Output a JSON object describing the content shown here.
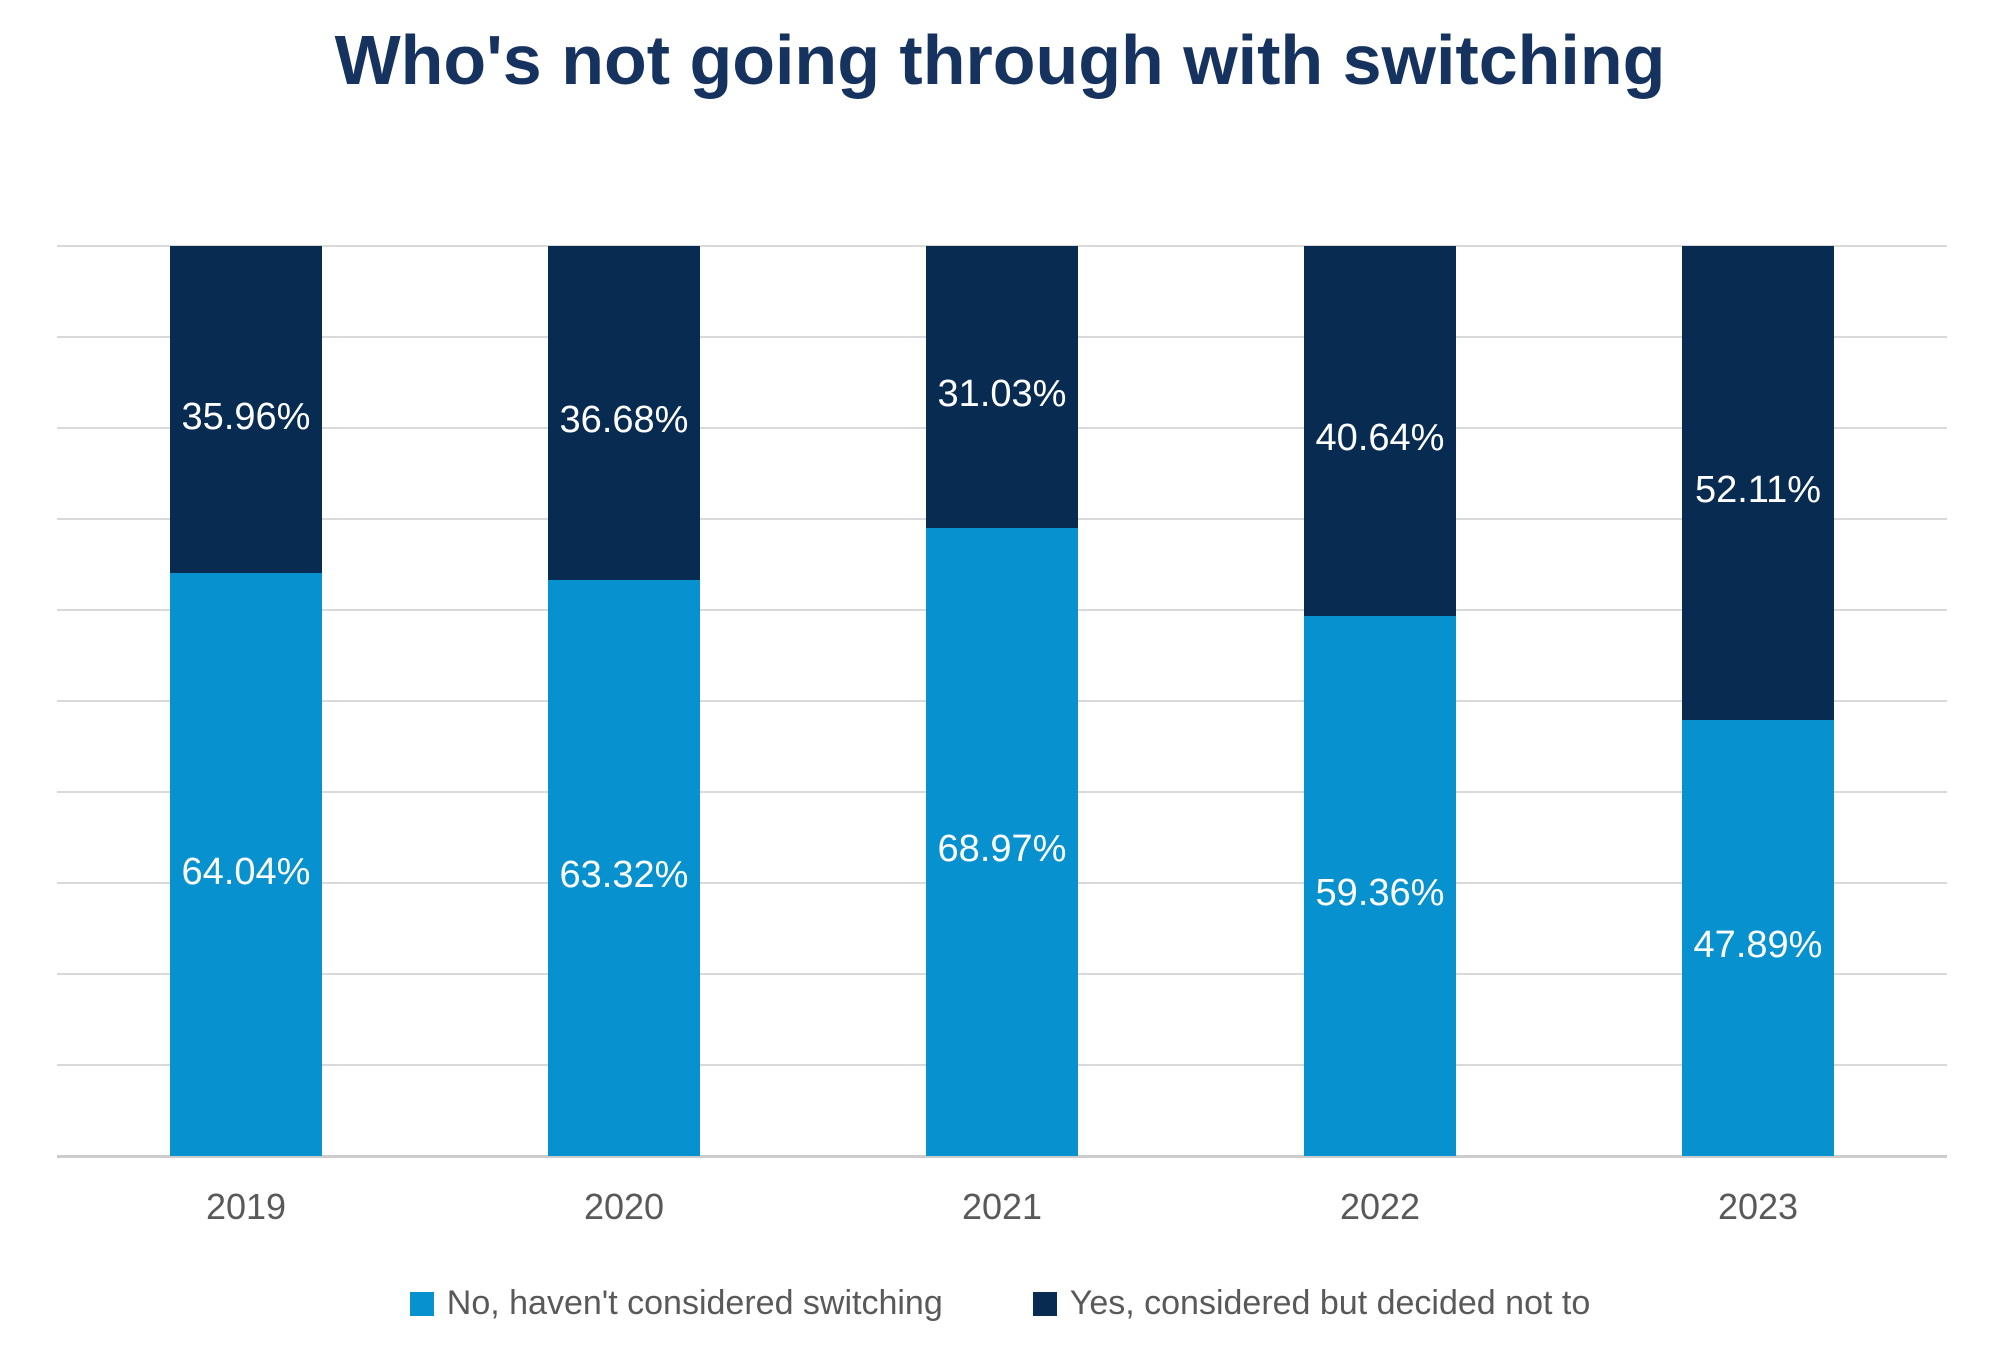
{
  "title": {
    "text": "Who's not going through with switching",
    "color": "#16325f"
  },
  "chart_data": {
    "type": "bar",
    "stacked": true,
    "title": "Who's not going through with switching",
    "categories": [
      "2019",
      "2020",
      "2021",
      "2022",
      "2023"
    ],
    "series": [
      {
        "name": "No, haven't considered switching",
        "color": "#0791ce",
        "position_in_stack": "bottom",
        "values": [
          64.04,
          63.32,
          68.97,
          59.36,
          47.89
        ],
        "labels": [
          "64.04%",
          "63.32%",
          "68.97%",
          "59.36%",
          "47.89%"
        ]
      },
      {
        "name": "Yes, considered but decided not to",
        "color": "#082b52",
        "position_in_stack": "top",
        "values": [
          35.96,
          36.68,
          31.03,
          40.64,
          52.11
        ],
        "labels": [
          "35.96%",
          "36.68%",
          "31.03%",
          "40.64%",
          "52.11%"
        ]
      }
    ],
    "xlabel": "",
    "ylabel": "",
    "ylim": [
      0,
      100
    ],
    "grid": true,
    "gridline_interval": 10,
    "gridline_color": "#d9d9d9",
    "legend_position": "bottom",
    "data_label_color": "#ffffff",
    "axis_text_color": "#595959"
  }
}
